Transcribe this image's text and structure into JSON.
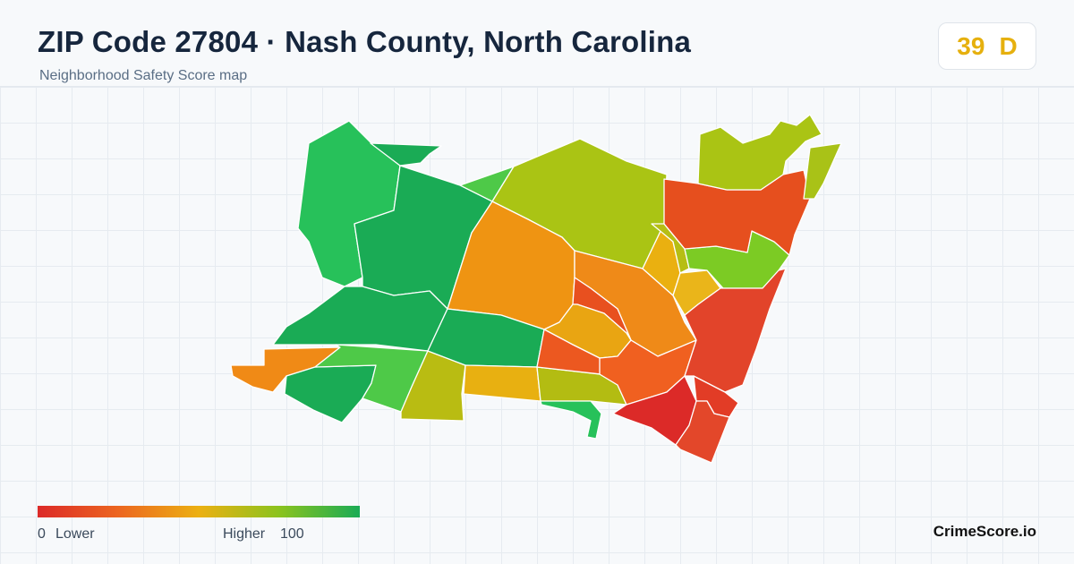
{
  "header": {
    "title": "ZIP Code 27804 · Nash County, North Carolina",
    "subtitle": "Neighborhood Safety Score map"
  },
  "score": {
    "value": "39",
    "grade": "D",
    "color": "#e6b00e"
  },
  "legend": {
    "min": "0",
    "low_label": "Lower",
    "high_label": "Higher",
    "max": "100",
    "colors": [
      "#dc2a28",
      "#ec6620",
      "#ecb012",
      "#8bc31e",
      "#1aab55"
    ]
  },
  "brand": "CrimeScore.io",
  "map": {
    "regions": [
      {
        "name": "northwest",
        "color": "#27c15a"
      },
      {
        "name": "northwest-top",
        "color": "#1aab55"
      },
      {
        "name": "west-central",
        "color": "#1aab55"
      },
      {
        "name": "west-lower",
        "color": "#1aab55"
      },
      {
        "name": "north-small",
        "color": "#4ec948"
      },
      {
        "name": "central-north",
        "color": "#aac414"
      },
      {
        "name": "central",
        "color": "#ef9412"
      },
      {
        "name": "central-south",
        "color": "#1aab55"
      },
      {
        "name": "southwest-strip",
        "color": "#f08a16"
      },
      {
        "name": "southwest-lower",
        "color": "#1aab55"
      },
      {
        "name": "south-mid-green",
        "color": "#4ec948"
      },
      {
        "name": "south-yellowgreen",
        "color": "#b9bc12"
      },
      {
        "name": "south-amber",
        "color": "#e8b011"
      },
      {
        "name": "south-olive",
        "color": "#b3bc12"
      },
      {
        "name": "south-green-spur",
        "color": "#27c15a"
      },
      {
        "name": "center-red",
        "color": "#e8501f"
      },
      {
        "name": "center-amber",
        "color": "#e9a512"
      },
      {
        "name": "center-orange",
        "color": "#ef8a18"
      },
      {
        "name": "southeast-orange",
        "color": "#f06020"
      },
      {
        "name": "central-east-red",
        "color": "#ec5820"
      },
      {
        "name": "east-amber-1",
        "color": "#eab010"
      },
      {
        "name": "east-yellowgreen",
        "color": "#b6be14"
      },
      {
        "name": "east-amber-2",
        "color": "#eab51a"
      },
      {
        "name": "east-green",
        "color": "#7ccb24"
      },
      {
        "name": "northeast-red",
        "color": "#e64f1e"
      },
      {
        "name": "northeast-olive",
        "color": "#aac414"
      },
      {
        "name": "northeast-strip",
        "color": "#a9c217"
      },
      {
        "name": "east-red",
        "color": "#e2442a"
      },
      {
        "name": "southeast-red-1",
        "color": "#e23c26"
      },
      {
        "name": "southeast-deep-red",
        "color": "#dc2a28"
      },
      {
        "name": "southeast-red-2",
        "color": "#e3472a"
      }
    ]
  }
}
